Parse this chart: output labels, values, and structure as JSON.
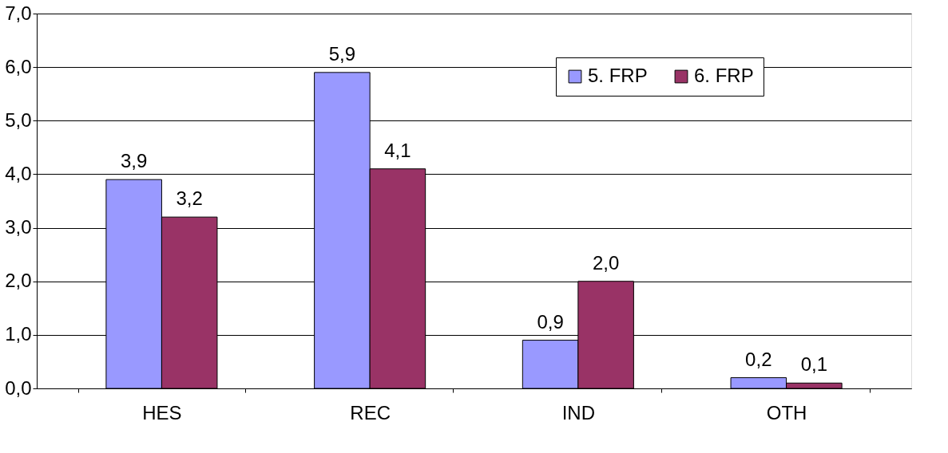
{
  "chart_data": {
    "type": "bar",
    "categories": [
      "HES",
      "REC",
      "IND",
      "OTH"
    ],
    "series": [
      {
        "name": "5. FRP",
        "color": "#9999ff",
        "values": [
          3.9,
          5.9,
          0.9,
          0.2
        ],
        "value_labels": [
          "3,9",
          "5,9",
          "0,9",
          "0,2"
        ]
      },
      {
        "name": "6. FRP",
        "color": "#993366",
        "values": [
          3.2,
          4.1,
          2.0,
          0.1
        ],
        "value_labels": [
          "3,2",
          "4,1",
          "2,0",
          "0,1"
        ]
      }
    ],
    "ylim": [
      0,
      7
    ],
    "yticks": [
      {
        "value": 0,
        "label": "0,0"
      },
      {
        "value": 1,
        "label": "1,0"
      },
      {
        "value": 2,
        "label": "2,0"
      },
      {
        "value": 3,
        "label": "3,0"
      },
      {
        "value": 4,
        "label": "4,0"
      },
      {
        "value": 5,
        "label": "5,0"
      },
      {
        "value": 6,
        "label": "6,0"
      },
      {
        "value": 7,
        "label": "7,0"
      }
    ],
    "grid": "y",
    "legend": "top right"
  }
}
